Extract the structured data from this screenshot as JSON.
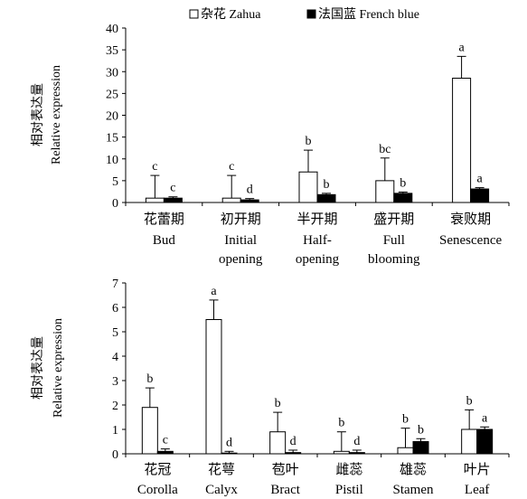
{
  "legend": [
    {
      "label": "杂花 Zahua",
      "color": "#ffffff"
    },
    {
      "label": "法国蓝 French  blue",
      "color": "#000000"
    }
  ],
  "chart_data": [
    {
      "type": "bar",
      "ylabel_cn": "相对表达量",
      "ylabel_en": "Relative expression",
      "ylim": [
        0,
        40
      ],
      "yticks": [
        0,
        5,
        10,
        15,
        20,
        25,
        30,
        35,
        40
      ],
      "categories": [
        {
          "cn": "花蕾期",
          "en": [
            "Bud"
          ]
        },
        {
          "cn": "初开期",
          "en": [
            "Initial",
            "opening"
          ]
        },
        {
          "cn": "半开期",
          "en": [
            "Half-",
            "opening"
          ]
        },
        {
          "cn": "盛开期",
          "en": [
            "Full",
            "blooming"
          ]
        },
        {
          "cn": "衰败期",
          "en": [
            "Senescence"
          ]
        }
      ],
      "series": [
        {
          "name": "杂花 Zahua",
          "values": [
            1.0,
            1.0,
            7.0,
            5.0,
            28.5
          ],
          "errors": [
            5.2,
            5.2,
            5.0,
            5.2,
            5.0
          ],
          "letters": [
            "c",
            "c",
            "b",
            "bc",
            "a"
          ]
        },
        {
          "name": "法国蓝 French blue",
          "values": [
            1.0,
            0.6,
            1.8,
            2.1,
            3.1
          ],
          "errors": [
            0.3,
            0.3,
            0.3,
            0.3,
            0.3
          ],
          "letters": [
            "c",
            "d",
            "b",
            "b",
            "a"
          ]
        }
      ]
    },
    {
      "type": "bar",
      "ylabel_cn": "相对表达量",
      "ylabel_en": "Relative expression",
      "ylim": [
        0,
        7
      ],
      "yticks": [
        0,
        1,
        2,
        3,
        4,
        5,
        6,
        7
      ],
      "categories": [
        {
          "cn": "花冠",
          "en": [
            "Corolla"
          ]
        },
        {
          "cn": "花萼",
          "en": [
            "Calyx"
          ]
        },
        {
          "cn": "苞叶",
          "en": [
            "Bract"
          ]
        },
        {
          "cn": "雌蕊",
          "en": [
            "Pistil"
          ]
        },
        {
          "cn": "雄蕊",
          "en": [
            "Stamen"
          ]
        },
        {
          "cn": "叶片",
          "en": [
            "Leaf"
          ]
        }
      ],
      "series": [
        {
          "name": "杂花 Zahua",
          "values": [
            1.9,
            5.5,
            0.9,
            0.1,
            0.25,
            1.0
          ],
          "errors": [
            0.8,
            0.8,
            0.8,
            0.8,
            0.8,
            0.8
          ],
          "letters": [
            "b",
            "a",
            "b",
            "b",
            "b",
            "b"
          ]
        },
        {
          "name": "法国蓝 French blue",
          "values": [
            0.1,
            0.0,
            0.05,
            0.05,
            0.5,
            1.0
          ],
          "errors": [
            0.1,
            0.1,
            0.1,
            0.1,
            0.12,
            0.1
          ],
          "letters": [
            "c",
            "d",
            "d",
            "d",
            "b",
            "a"
          ]
        }
      ]
    }
  ]
}
